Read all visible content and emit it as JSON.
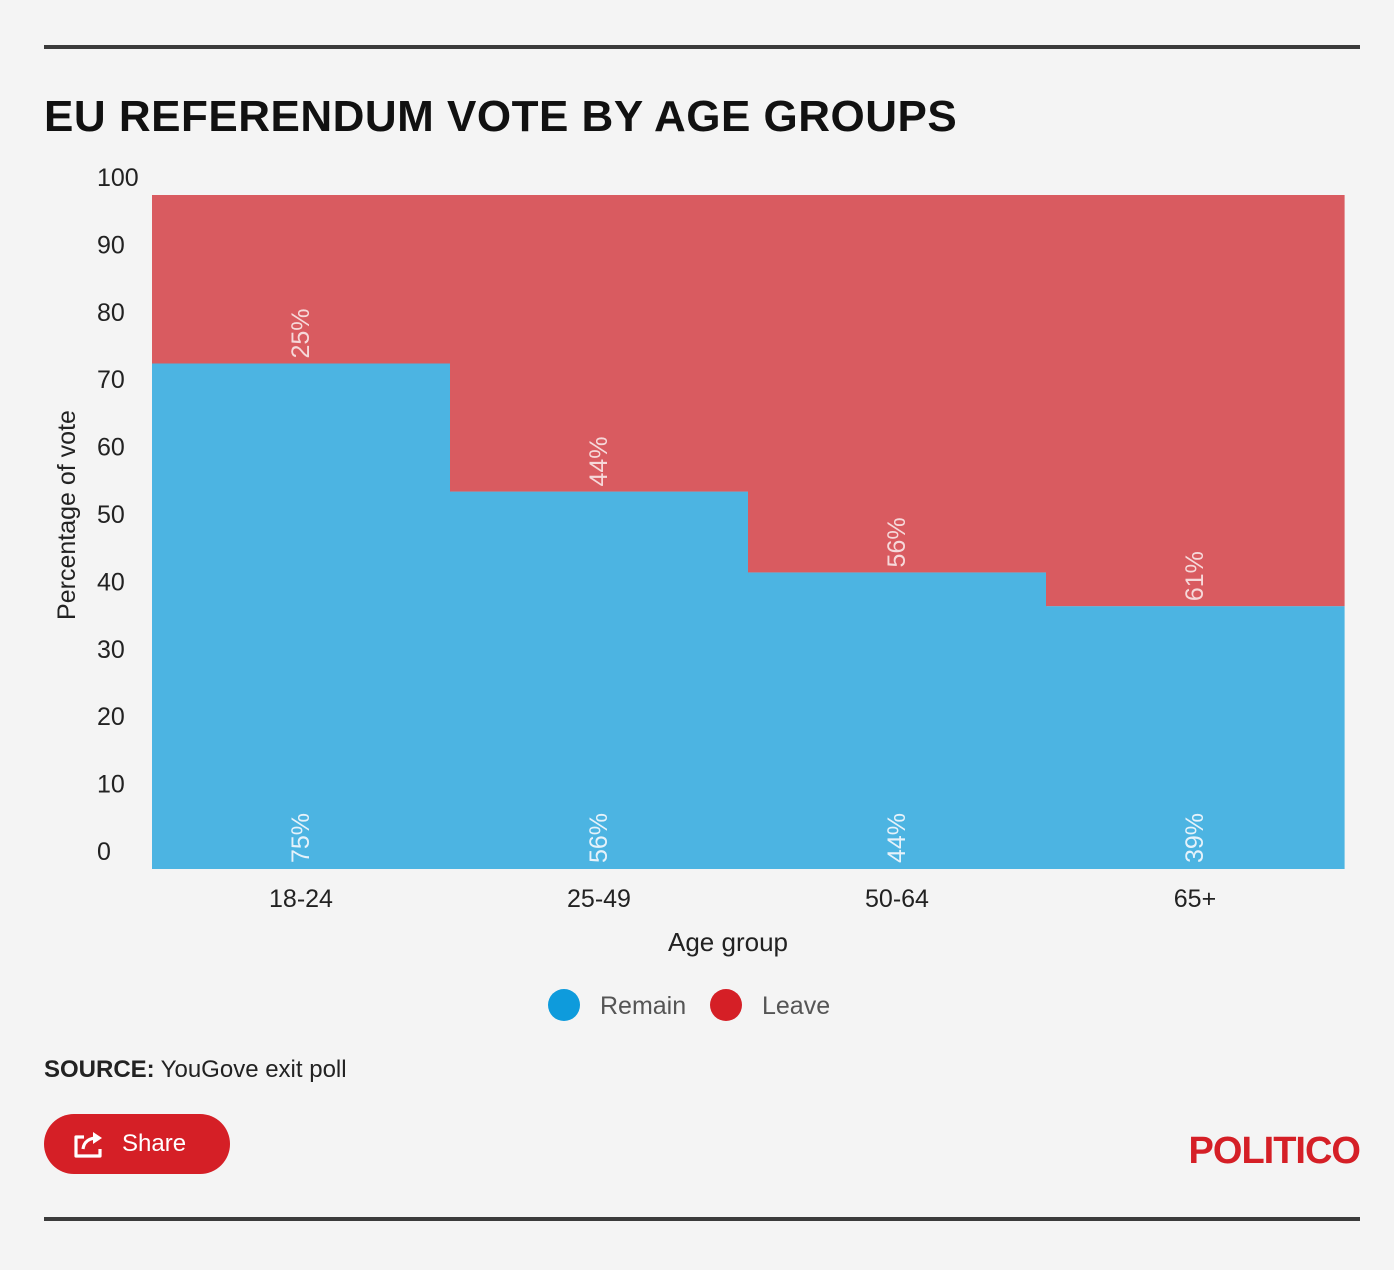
{
  "title": "EU REFERENDUM VOTE BY AGE GROUPS",
  "source": {
    "label": "SOURCE:",
    "text": "YouGove exit poll"
  },
  "share": {
    "label": "Share",
    "icon": "share-icon"
  },
  "brand": {
    "logo_text": "POLITICO",
    "color": "#d51f26"
  },
  "chart_data": {
    "type": "bar",
    "stacked": true,
    "title": "EU REFERENDUM VOTE BY AGE GROUPS",
    "xlabel": "Age group",
    "ylabel": "Percentage of vote",
    "ylim": [
      0,
      100
    ],
    "yticks": [
      0,
      10,
      20,
      30,
      40,
      50,
      60,
      70,
      80,
      90,
      100
    ],
    "grid": false,
    "legend_position": "bottom",
    "categories": [
      "18-24",
      "25-49",
      "50-64",
      "65+"
    ],
    "series": [
      {
        "name": "Remain",
        "color": "#4cb4e2",
        "legend_color": "#0e9bdc",
        "values": [
          75,
          56,
          44,
          39
        ],
        "labels": [
          "75%",
          "56%",
          "44%",
          "39%"
        ]
      },
      {
        "name": "Leave",
        "color": "#d95b60",
        "legend_color": "#d51f26",
        "values": [
          25,
          44,
          56,
          61
        ],
        "labels": [
          "25%",
          "44%",
          "56%",
          "61%"
        ]
      }
    ]
  }
}
